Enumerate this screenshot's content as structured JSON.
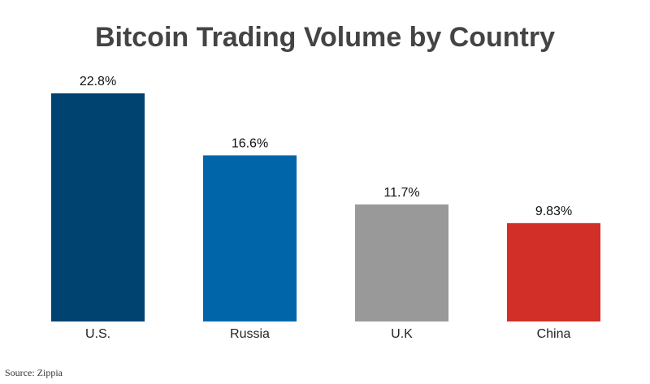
{
  "chart_data": {
    "type": "bar",
    "title": "Bitcoin Trading Volume by Country",
    "categories": [
      "U.S.",
      "Russia",
      "U.K",
      "China"
    ],
    "values": [
      22.8,
      16.6,
      11.7,
      9.83
    ],
    "value_labels": [
      "22.8%",
      "16.6%",
      "11.7%",
      "9.83%"
    ],
    "colors": [
      "#004370",
      "#0066a9",
      "#999999",
      "#d12f27"
    ],
    "source": "Source: Zippia"
  }
}
